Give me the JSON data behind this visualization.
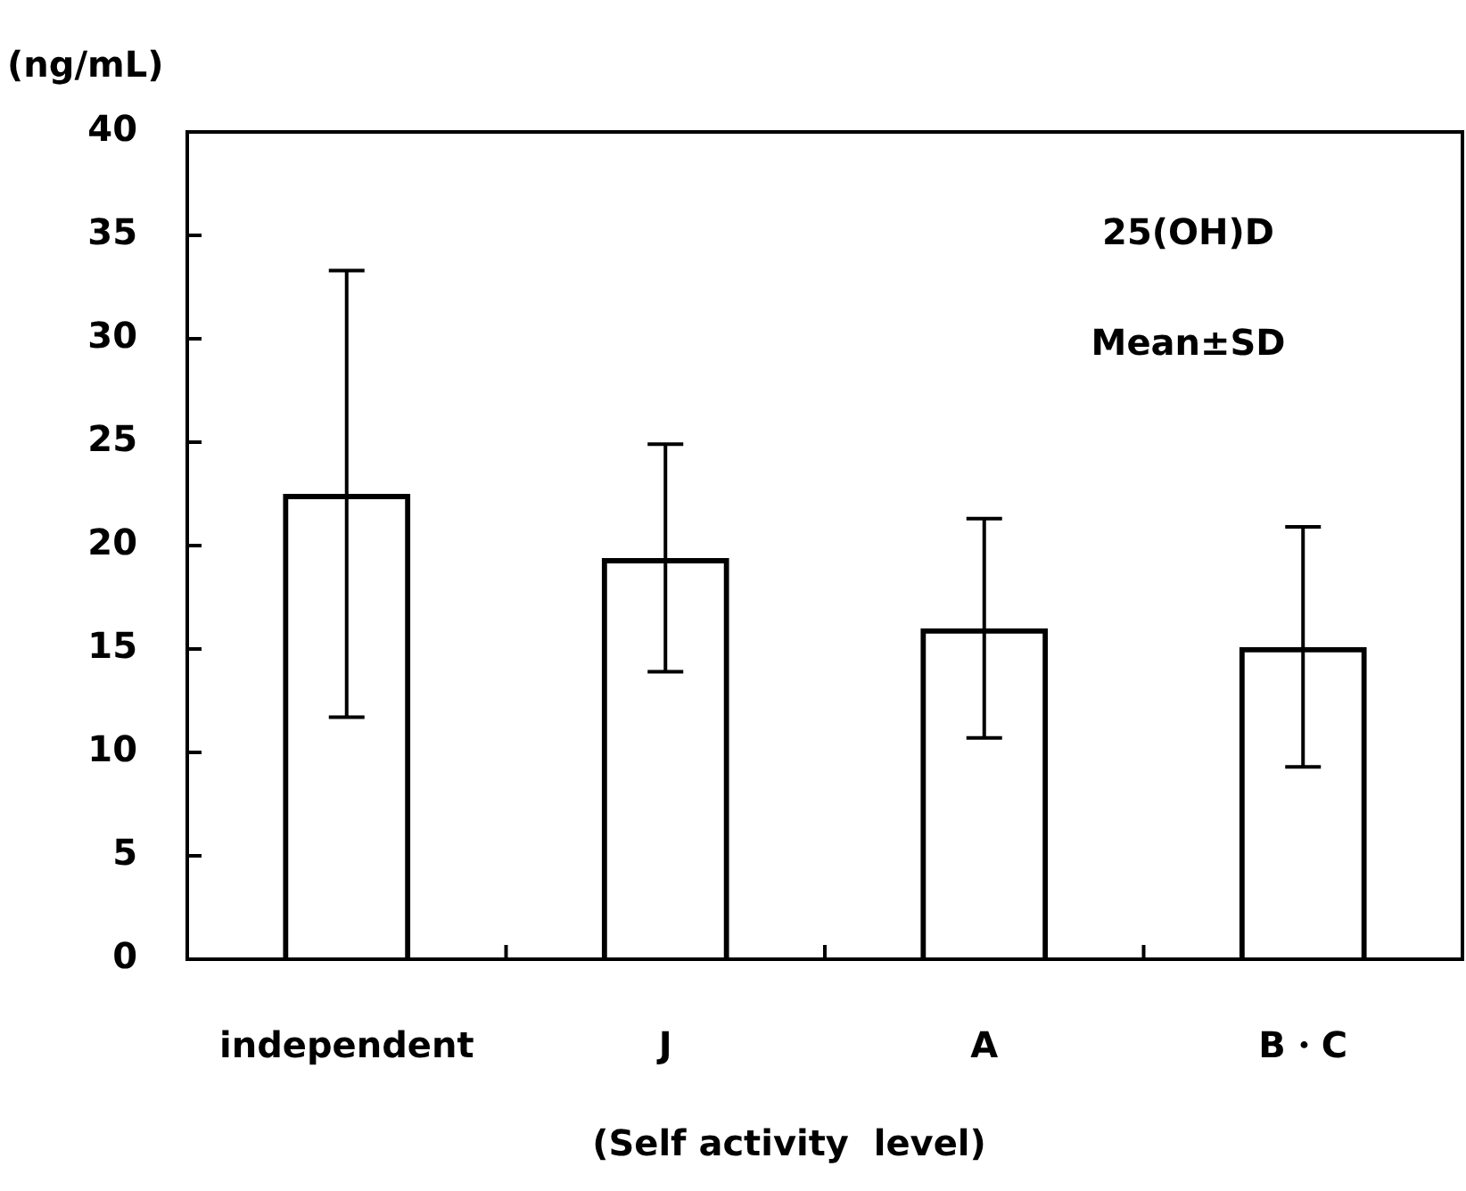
{
  "chart_data": {
    "type": "bar",
    "categories": [
      "independent",
      "J",
      "A",
      "B・C"
    ],
    "values": [
      22.5,
      19.4,
      16.0,
      15.1
    ],
    "errors": [
      10.8,
      5.5,
      5.3,
      5.8
    ],
    "color": "#000000",
    "ylabel": "(ng/mL)",
    "xlabel": "(Self activity  level)",
    "annotations": [
      "25(OH)D",
      "Mean±SD"
    ],
    "ylim": [
      0,
      40
    ],
    "yticks": [
      0,
      5,
      10,
      15,
      20,
      25,
      30,
      35,
      40
    ],
    "grid": false,
    "legend": false
  }
}
